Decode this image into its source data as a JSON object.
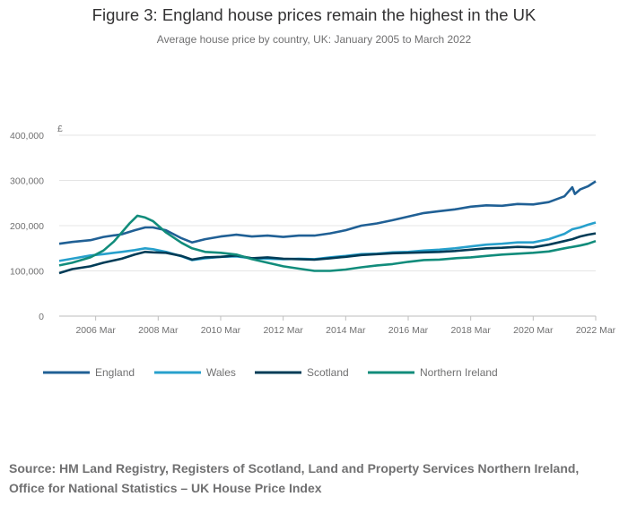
{
  "title": "Figure 3: England house prices remain the highest in the UK",
  "subtitle": "Average house price by country, UK: January 2005 to March 2022",
  "source": "Source: HM Land Registry, Registers of Scotland, Land and Property Services Northern Ireland, Office for National Statistics – UK House Price Index",
  "colors": {
    "england": "#206095",
    "wales": "#27a0cc",
    "scotland": "#003c57",
    "northern_ireland": "#118c7b",
    "grid": "#e5e5e5",
    "axis": "#bebebe",
    "text": "#707071"
  },
  "chart_data": {
    "type": "line",
    "ylabel": "£",
    "ylim": [
      0,
      400000
    ],
    "xlim": [
      "2005-01",
      "2022-03"
    ],
    "y_ticks": [
      0,
      100000,
      200000,
      300000,
      400000
    ],
    "y_tick_labels": [
      "0",
      "100,000",
      "200,000",
      "300,000",
      "400,000"
    ],
    "x_ticks": [
      "2006-03",
      "2008-03",
      "2010-03",
      "2012-03",
      "2014-03",
      "2016-03",
      "2018-03",
      "2020-03",
      "2022-03"
    ],
    "x_tick_labels": [
      "2006 Mar",
      "2008 Mar",
      "2010 Mar",
      "2012 Mar",
      "2014 Mar",
      "2016 Mar",
      "2018 Mar",
      "2020 Mar",
      "2022 Mar"
    ],
    "grid": true,
    "legend_position": "bottom",
    "series": [
      {
        "name": "England",
        "key": "england",
        "points": [
          [
            "2005-01",
            160000
          ],
          [
            "2005-06",
            164000
          ],
          [
            "2006-01",
            168000
          ],
          [
            "2006-06",
            175000
          ],
          [
            "2007-01",
            181000
          ],
          [
            "2007-06",
            190000
          ],
          [
            "2007-10",
            196000
          ],
          [
            "2008-01",
            196000
          ],
          [
            "2008-06",
            190000
          ],
          [
            "2008-12",
            172000
          ],
          [
            "2009-04",
            163000
          ],
          [
            "2009-09",
            170000
          ],
          [
            "2010-03",
            176000
          ],
          [
            "2010-09",
            180000
          ],
          [
            "2011-03",
            176000
          ],
          [
            "2011-09",
            178000
          ],
          [
            "2012-03",
            175000
          ],
          [
            "2012-09",
            178000
          ],
          [
            "2013-03",
            178000
          ],
          [
            "2013-09",
            183000
          ],
          [
            "2014-03",
            190000
          ],
          [
            "2014-09",
            200000
          ],
          [
            "2015-03",
            205000
          ],
          [
            "2015-09",
            212000
          ],
          [
            "2016-03",
            220000
          ],
          [
            "2016-09",
            228000
          ],
          [
            "2017-03",
            232000
          ],
          [
            "2017-09",
            236000
          ],
          [
            "2018-03",
            242000
          ],
          [
            "2018-09",
            245000
          ],
          [
            "2019-03",
            244000
          ],
          [
            "2019-09",
            248000
          ],
          [
            "2020-03",
            247000
          ],
          [
            "2020-09",
            252000
          ],
          [
            "2021-03",
            265000
          ],
          [
            "2021-06",
            285000
          ],
          [
            "2021-07",
            270000
          ],
          [
            "2021-09",
            280000
          ],
          [
            "2021-12",
            287000
          ],
          [
            "2022-03",
            298000
          ]
        ]
      },
      {
        "name": "Wales",
        "key": "wales",
        "points": [
          [
            "2005-01",
            122000
          ],
          [
            "2005-06",
            127000
          ],
          [
            "2006-01",
            134000
          ],
          [
            "2006-06",
            137000
          ],
          [
            "2007-01",
            142000
          ],
          [
            "2007-06",
            146000
          ],
          [
            "2007-10",
            150000
          ],
          [
            "2008-01",
            148000
          ],
          [
            "2008-06",
            142000
          ],
          [
            "2008-12",
            132000
          ],
          [
            "2009-04",
            124000
          ],
          [
            "2009-09",
            128000
          ],
          [
            "2010-03",
            131000
          ],
          [
            "2010-09",
            132000
          ],
          [
            "2011-03",
            128000
          ],
          [
            "2011-09",
            127000
          ],
          [
            "2012-03",
            126000
          ],
          [
            "2012-09",
            127000
          ],
          [
            "2013-03",
            126000
          ],
          [
            "2013-09",
            130000
          ],
          [
            "2014-03",
            133000
          ],
          [
            "2014-09",
            137000
          ],
          [
            "2015-03",
            138000
          ],
          [
            "2015-09",
            141000
          ],
          [
            "2016-03",
            142000
          ],
          [
            "2016-09",
            145000
          ],
          [
            "2017-03",
            147000
          ],
          [
            "2017-09",
            150000
          ],
          [
            "2018-03",
            154000
          ],
          [
            "2018-09",
            158000
          ],
          [
            "2019-03",
            160000
          ],
          [
            "2019-09",
            163000
          ],
          [
            "2020-03",
            163000
          ],
          [
            "2020-09",
            170000
          ],
          [
            "2021-03",
            182000
          ],
          [
            "2021-06",
            192000
          ],
          [
            "2021-09",
            196000
          ],
          [
            "2021-12",
            202000
          ],
          [
            "2022-03",
            207000
          ]
        ]
      },
      {
        "name": "Scotland",
        "key": "scotland",
        "points": [
          [
            "2005-01",
            95000
          ],
          [
            "2005-06",
            104000
          ],
          [
            "2006-01",
            110000
          ],
          [
            "2006-06",
            118000
          ],
          [
            "2007-01",
            127000
          ],
          [
            "2007-06",
            136000
          ],
          [
            "2007-10",
            142000
          ],
          [
            "2008-01",
            141000
          ],
          [
            "2008-06",
            140000
          ],
          [
            "2008-12",
            133000
          ],
          [
            "2009-04",
            125000
          ],
          [
            "2009-09",
            130000
          ],
          [
            "2010-03",
            131000
          ],
          [
            "2010-09",
            134000
          ],
          [
            "2011-03",
            128000
          ],
          [
            "2011-09",
            130000
          ],
          [
            "2012-03",
            127000
          ],
          [
            "2012-09",
            126000
          ],
          [
            "2013-03",
            125000
          ],
          [
            "2013-09",
            128000
          ],
          [
            "2014-03",
            131000
          ],
          [
            "2014-09",
            135000
          ],
          [
            "2015-03",
            137000
          ],
          [
            "2015-09",
            139000
          ],
          [
            "2016-03",
            140000
          ],
          [
            "2016-09",
            141000
          ],
          [
            "2017-03",
            142000
          ],
          [
            "2017-09",
            144000
          ],
          [
            "2018-03",
            147000
          ],
          [
            "2018-09",
            150000
          ],
          [
            "2019-03",
            151000
          ],
          [
            "2019-09",
            153000
          ],
          [
            "2020-03",
            152000
          ],
          [
            "2020-09",
            158000
          ],
          [
            "2021-03",
            166000
          ],
          [
            "2021-06",
            170000
          ],
          [
            "2021-09",
            176000
          ],
          [
            "2021-12",
            180000
          ],
          [
            "2022-03",
            183000
          ]
        ]
      },
      {
        "name": "Northern Ireland",
        "key": "northern_ireland",
        "points": [
          [
            "2005-01",
            112000
          ],
          [
            "2005-06",
            118000
          ],
          [
            "2006-01",
            130000
          ],
          [
            "2006-06",
            145000
          ],
          [
            "2006-10",
            165000
          ],
          [
            "2007-01",
            185000
          ],
          [
            "2007-04",
            205000
          ],
          [
            "2007-07",
            222000
          ],
          [
            "2007-10",
            218000
          ],
          [
            "2008-01",
            210000
          ],
          [
            "2008-06",
            185000
          ],
          [
            "2008-12",
            162000
          ],
          [
            "2009-04",
            150000
          ],
          [
            "2009-09",
            142000
          ],
          [
            "2010-03",
            140000
          ],
          [
            "2010-09",
            136000
          ],
          [
            "2011-03",
            126000
          ],
          [
            "2011-09",
            118000
          ],
          [
            "2012-03",
            110000
          ],
          [
            "2012-09",
            105000
          ],
          [
            "2013-03",
            100000
          ],
          [
            "2013-09",
            100000
          ],
          [
            "2014-03",
            103000
          ],
          [
            "2014-09",
            108000
          ],
          [
            "2015-03",
            112000
          ],
          [
            "2015-09",
            115000
          ],
          [
            "2016-03",
            120000
          ],
          [
            "2016-09",
            124000
          ],
          [
            "2017-03",
            125000
          ],
          [
            "2017-09",
            128000
          ],
          [
            "2018-03",
            130000
          ],
          [
            "2018-09",
            133000
          ],
          [
            "2019-03",
            136000
          ],
          [
            "2019-09",
            138000
          ],
          [
            "2020-03",
            140000
          ],
          [
            "2020-09",
            143000
          ],
          [
            "2021-03",
            150000
          ],
          [
            "2021-09",
            156000
          ],
          [
            "2021-12",
            160000
          ],
          [
            "2022-03",
            166000
          ]
        ]
      }
    ]
  }
}
